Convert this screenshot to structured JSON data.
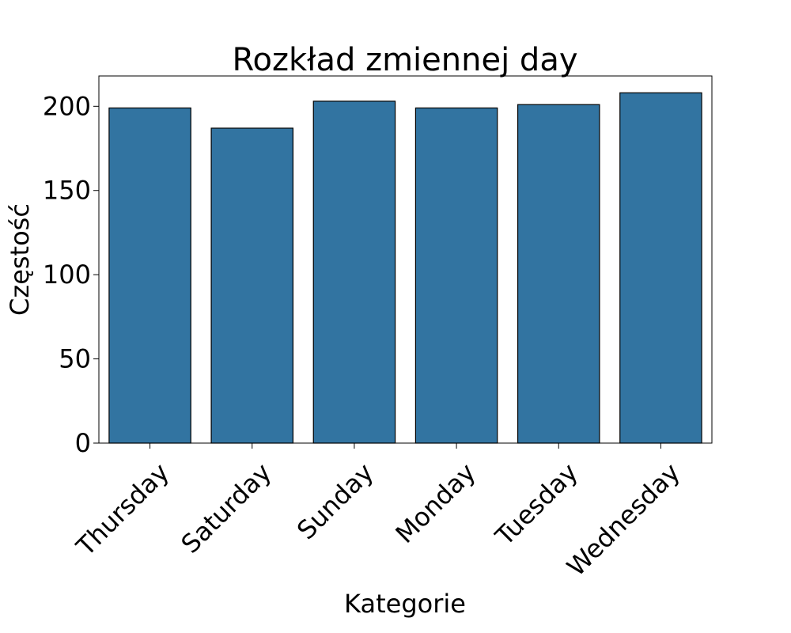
{
  "chart_data": {
    "type": "bar",
    "title": "Rozkład zmiennej day",
    "xlabel": "Kategorie",
    "ylabel": "Częstość",
    "categories": [
      "Thursday",
      "Saturday",
      "Sunday",
      "Monday",
      "Tuesday",
      "Wednesday"
    ],
    "values": [
      199,
      187,
      203,
      199,
      201,
      208
    ],
    "yticks": [
      0,
      50,
      100,
      150,
      200
    ],
    "ylim": [
      0,
      218
    ],
    "bar_color": "#3274a1",
    "grid": false,
    "legend": "none"
  }
}
